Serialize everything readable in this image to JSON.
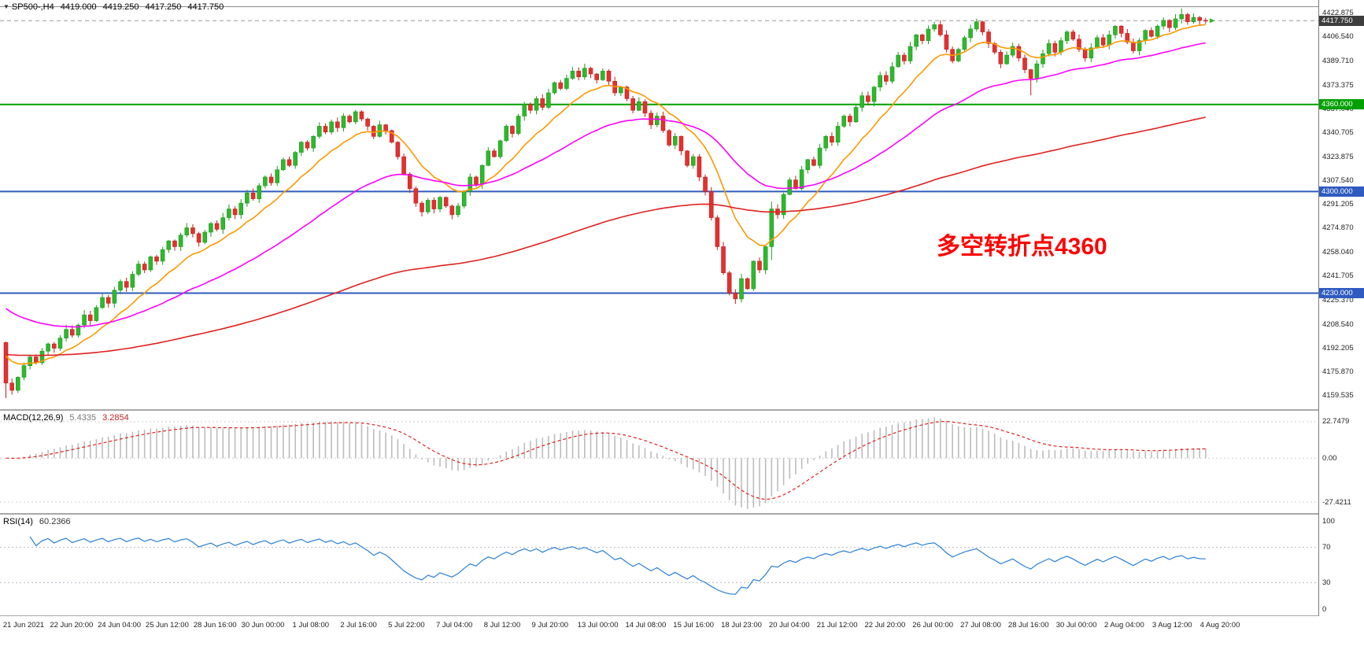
{
  "header": {
    "symbol": "SP500-,H4",
    "open": "4419.000",
    "high": "4419.250",
    "low": "4417.250",
    "close": "4417.750"
  },
  "annotation": {
    "text": "多空转折点4360",
    "color": "#ff0000"
  },
  "price_axis": {
    "ticks": [
      "4422.875",
      "4406.540",
      "4389.710",
      "4373.375",
      "4357.040",
      "4340.705",
      "4323.875",
      "4307.540",
      "4291.205",
      "4274.870",
      "4258.040",
      "4241.705",
      "4225.370",
      "4208.540",
      "4192.205",
      "4175.870",
      "4159.535"
    ],
    "badges": [
      {
        "label": "4417.750",
        "price": 4417.75,
        "color": "#3d3d3d"
      },
      {
        "label": "4360.000",
        "price": 4360,
        "color": "#00a000"
      },
      {
        "label": "4300.000",
        "price": 4300,
        "color": "#2f5bc0"
      },
      {
        "label": "4230.000",
        "price": 4230,
        "color": "#2f5bc0"
      }
    ]
  },
  "hlines": [
    {
      "price": 4360,
      "color": "#00a000",
      "width": 2
    },
    {
      "price": 4300,
      "color": "#2f5bc0",
      "width": 2
    },
    {
      "price": 4230,
      "color": "#2f5bc0",
      "width": 2
    }
  ],
  "macd": {
    "label": "MACD(12,26,9)",
    "value_main": "5.4335",
    "value_signal": "3.2854",
    "ticks": [
      "22.7479",
      "0.00",
      "-27.4211"
    ],
    "tick_values": [
      22.7479,
      0,
      -27.4211
    ]
  },
  "rsi": {
    "label": "RSI(14)",
    "value": "60.2366",
    "ticks": [
      "100",
      "70",
      "30",
      "0"
    ],
    "tick_values": [
      100,
      70,
      30,
      0
    ],
    "levels": [
      70,
      30
    ]
  },
  "time_axis": {
    "labels": [
      "21 Jun 2021",
      "22 Jun 20:00",
      "24 Jun 04:00",
      "25 Jun 12:00",
      "28 Jun 16:00",
      "30 Jun 00:00",
      "1 Jul 08:00",
      "2 Jul 16:00",
      "5 Jul 22:00",
      "7 Jul 04:00",
      "8 Jul 12:00",
      "9 Jul 20:00",
      "13 Jul 00:00",
      "14 Jul 08:00",
      "15 Jul 16:00",
      "18 Jul 23:00",
      "20 Jul 04:00",
      "21 Jul 12:00",
      "22 Jul 20:00",
      "26 Jul 00:00",
      "27 Jul 08:00",
      "28 Jul 16:00",
      "30 Jul 00:00",
      "2 Aug 04:00",
      "3 Aug 12:00",
      "4 Aug 20:00"
    ]
  },
  "chart_data": {
    "type": "candlestick",
    "symbol": "SP500-",
    "timeframe": "H4",
    "title": "SP500-,H4 4419.000 4419.250 4417.250 4417.750",
    "ohlc_current": {
      "open": 4419.0,
      "high": 4419.25,
      "low": 4417.25,
      "close": 4417.75
    },
    "price_axis_range": [
      4150,
      4432
    ],
    "horizontal_levels": [
      4360,
      4300,
      4230
    ],
    "first_open": 4196,
    "closes": [
      4168,
      4163,
      4172,
      4180,
      4186,
      4182,
      4190,
      4195,
      4192,
      4199,
      4205,
      4201,
      4208,
      4215,
      4211,
      4220,
      4227,
      4223,
      4232,
      4238,
      4234,
      4243,
      4250,
      4246,
      4255,
      4252,
      4260,
      4266,
      4262,
      4270,
      4275,
      4271,
      4265,
      4272,
      4278,
      4274,
      4282,
      4288,
      4284,
      4292,
      4299,
      4295,
      4304,
      4310,
      4306,
      4315,
      4322,
      4318,
      4327,
      4334,
      4330,
      4338,
      4345,
      4341,
      4348,
      4344,
      4352,
      4348,
      4355,
      4350,
      4345,
      4338,
      4346,
      4342,
      4334,
      4324,
      4312,
      4302,
      4292,
      4286,
      4294,
      4288,
      4296,
      4290,
      4284,
      4290,
      4300,
      4310,
      4305,
      4318,
      4328,
      4324,
      4335,
      4345,
      4340,
      4352,
      4360,
      4356,
      4364,
      4358,
      4368,
      4375,
      4371,
      4378,
      4383,
      4379,
      4385,
      4381,
      4377,
      4383,
      4376,
      4368,
      4372,
      4364,
      4356,
      4362,
      4354,
      4346,
      4352,
      4342,
      4332,
      4338,
      4328,
      4318,
      4324,
      4310,
      4300,
      4282,
      4262,
      4244,
      4230,
      4226,
      4240,
      4233,
      4252,
      4246,
      4262,
      4288,
      4284,
      4298,
      4308,
      4302,
      4315,
      4322,
      4318,
      4330,
      4338,
      4334,
      4345,
      4352,
      4348,
      4358,
      4366,
      4362,
      4372,
      4380,
      4376,
      4386,
      4394,
      4390,
      4400,
      4408,
      4404,
      4412,
      4415,
      4408,
      4398,
      4390,
      4398,
      4406,
      4412,
      4417,
      4410,
      4402,
      4396,
      4388,
      4394,
      4400,
      4392,
      4384,
      4378,
      4388,
      4395,
      4402,
      4396,
      4404,
      4410,
      4405,
      4398,
      4392,
      4399,
      4406,
      4401,
      4408,
      4414,
      4409,
      4403,
      4397,
      4404,
      4411,
      4407,
      4414,
      4418,
      4413,
      4419,
      4422,
      4417,
      4420,
      4418,
      4417.75
    ],
    "wick_overrides": {
      "0": [
        0,
        9
      ],
      "121": [
        0,
        2
      ],
      "127": [
        4,
        6
      ],
      "170": [
        0,
        9
      ],
      "195": [
        2,
        0
      ]
    },
    "moving_averages": [
      {
        "name": "fast-ma",
        "color": "#ff9800",
        "k": 0.1538,
        "seed": 4190
      },
      {
        "name": "medium-ma",
        "color": "#ff00ff",
        "k": 0.0488,
        "seed": 4222
      },
      {
        "name": "slow-ma",
        "color": "#e02020",
        "k": 0.013,
        "seed": 4188
      }
    ],
    "macd_range": [
      29.6,
      -34.3
    ],
    "up_color": "#2eb82e",
    "up_stroke": "#1f9a1f",
    "down_color": "#e33030",
    "down_stroke": "#c02020",
    "macd_histogram_color": "#bcbcbc",
    "macd_signal_color": "#e02020",
    "rsi_color": "#2a7fd4"
  }
}
